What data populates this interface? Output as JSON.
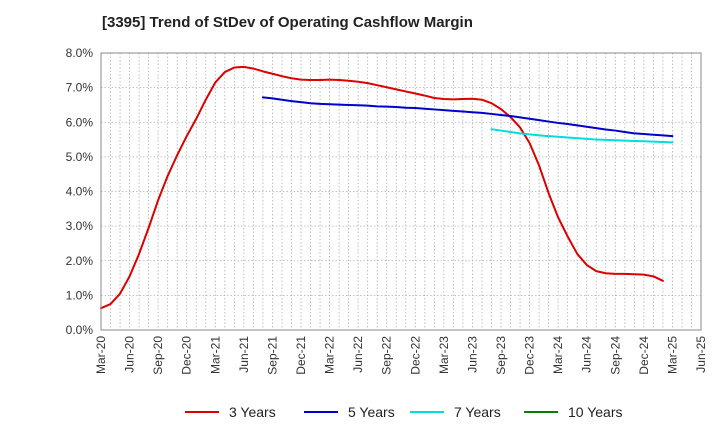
{
  "chart_data": {
    "type": "line",
    "title": "[3395]  Trend of StDev of Operating Cashflow Margin",
    "xlabel": "",
    "ylabel": "",
    "x_tick_labels": [
      "Mar-20",
      "Jun-20",
      "Sep-20",
      "Dec-20",
      "Mar-21",
      "Jun-21",
      "Sep-21",
      "Dec-21",
      "Mar-22",
      "Jun-22",
      "Sep-22",
      "Dec-22",
      "Mar-23",
      "Jun-23",
      "Sep-23",
      "Dec-23",
      "Mar-24",
      "Jun-24",
      "Sep-24",
      "Dec-24",
      "Mar-25",
      "Jun-25"
    ],
    "y_tick_labels": [
      "0.0%",
      "1.0%",
      "2.0%",
      "3.0%",
      "4.0%",
      "5.0%",
      "6.0%",
      "7.0%",
      "8.0%"
    ],
    "ylim": [
      0,
      8
    ],
    "y_unit": "%",
    "grid": true,
    "legend_position": "bottom",
    "series": [
      {
        "name": "3 Years",
        "color": "#dd0000",
        "x": [
          "Mar-20",
          "Apr-20",
          "May-20",
          "Jun-20",
          "Jul-20",
          "Aug-20",
          "Sep-20",
          "Oct-20",
          "Nov-20",
          "Dec-20",
          "Jan-21",
          "Feb-21",
          "Mar-21",
          "Apr-21",
          "May-21",
          "Jun-21",
          "Jul-21",
          "Aug-21",
          "Sep-21",
          "Oct-21",
          "Nov-21",
          "Dec-21",
          "Jan-22",
          "Feb-22",
          "Mar-22",
          "Apr-22",
          "May-22",
          "Jun-22",
          "Jul-22",
          "Aug-22",
          "Sep-22",
          "Oct-22",
          "Nov-22",
          "Dec-22",
          "Jan-23",
          "Feb-23",
          "Mar-23",
          "Apr-23",
          "May-23",
          "Jun-23",
          "Jul-23",
          "Aug-23",
          "Sep-23",
          "Oct-23",
          "Nov-23",
          "Dec-23",
          "Jan-24",
          "Feb-24",
          "Mar-24",
          "Apr-24",
          "May-24",
          "Jun-24",
          "Jul-24",
          "Aug-24",
          "Sep-24",
          "Oct-24",
          "Nov-24",
          "Dec-24",
          "Jan-25",
          "Feb-25",
          "Mar-25"
        ],
        "values": [
          0.63,
          0.75,
          1.05,
          1.55,
          2.2,
          2.95,
          3.75,
          4.45,
          5.05,
          5.6,
          6.1,
          6.65,
          7.15,
          7.45,
          7.58,
          7.6,
          7.55,
          7.47,
          7.4,
          7.33,
          7.27,
          7.23,
          7.22,
          7.22,
          7.23,
          7.22,
          7.2,
          7.17,
          7.13,
          7.07,
          7.01,
          6.95,
          6.89,
          6.83,
          6.77,
          6.7,
          6.67,
          6.66,
          6.67,
          6.68,
          6.65,
          6.55,
          6.38,
          6.15,
          5.85,
          5.4,
          4.75,
          3.95,
          3.25,
          2.7,
          2.2,
          1.88,
          1.7,
          1.64,
          1.62,
          1.62,
          1.61,
          1.6,
          1.55,
          1.42,
          null
        ]
      },
      {
        "name": "5 Years",
        "color": "#0000cc",
        "x": [
          "Aug-21",
          "Sep-21",
          "Oct-21",
          "Nov-21",
          "Dec-21",
          "Jan-22",
          "Feb-22",
          "Mar-22",
          "Apr-22",
          "May-22",
          "Jun-22",
          "Jul-22",
          "Aug-22",
          "Sep-22",
          "Oct-22",
          "Nov-22",
          "Dec-22",
          "Jan-23",
          "Feb-23",
          "Mar-23",
          "Apr-23",
          "May-23",
          "Jun-23",
          "Jul-23",
          "Aug-23",
          "Sep-23",
          "Oct-23",
          "Nov-23",
          "Dec-23",
          "Jan-24",
          "Feb-24",
          "Mar-24",
          "Apr-24",
          "May-24",
          "Jun-24",
          "Jul-24",
          "Aug-24",
          "Sep-24",
          "Oct-24",
          "Nov-24",
          "Dec-24",
          "Jan-25",
          "Feb-25",
          "Mar-25"
        ],
        "values": [
          6.72,
          6.69,
          6.65,
          6.61,
          6.58,
          6.55,
          6.53,
          6.52,
          6.51,
          6.5,
          6.49,
          6.48,
          6.46,
          6.45,
          6.44,
          6.42,
          6.41,
          6.39,
          6.37,
          6.35,
          6.33,
          6.31,
          6.29,
          6.27,
          6.24,
          6.21,
          6.18,
          6.14,
          6.1,
          6.06,
          6.02,
          5.98,
          5.95,
          5.91,
          5.87,
          5.83,
          5.79,
          5.76,
          5.72,
          5.68,
          5.66,
          5.64,
          5.62,
          5.6
        ]
      },
      {
        "name": "7 Years",
        "color": "#00dddd",
        "x": [
          "Aug-23",
          "Sep-23",
          "Oct-23",
          "Nov-23",
          "Dec-23",
          "Jan-24",
          "Feb-24",
          "Mar-24",
          "Apr-24",
          "May-24",
          "Jun-24",
          "Jul-24",
          "Aug-24",
          "Sep-24",
          "Oct-24",
          "Nov-24",
          "Dec-24",
          "Jan-25",
          "Feb-25",
          "Mar-25"
        ],
        "values": [
          5.8,
          5.76,
          5.72,
          5.68,
          5.65,
          5.62,
          5.6,
          5.58,
          5.56,
          5.54,
          5.52,
          5.5,
          5.49,
          5.48,
          5.47,
          5.46,
          5.45,
          5.44,
          5.43,
          5.42
        ]
      },
      {
        "name": "10 Years",
        "color": "#008000",
        "x": [],
        "values": []
      }
    ]
  }
}
